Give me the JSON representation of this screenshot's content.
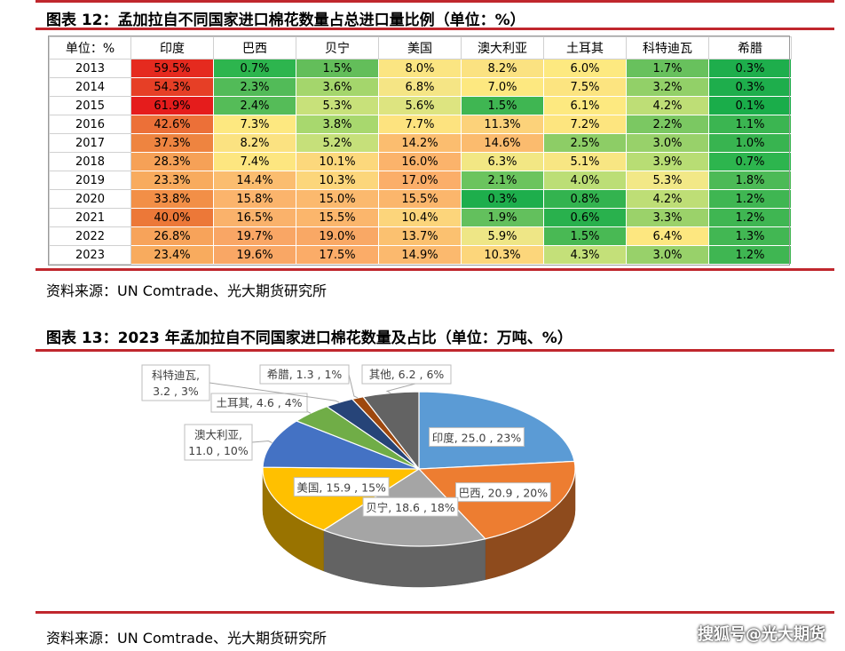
{
  "top_bar_color": "#c0272d",
  "figure12": {
    "title": "图表 12：孟加拉自不同国家进口棉花数量占总进口量比例（单位：%）",
    "header": [
      "单位：%",
      "印度",
      "巴西",
      "贝宁",
      "美国",
      "澳大利亚",
      "土耳其",
      "科特迪瓦",
      "希腊"
    ],
    "rows": [
      {
        "year": "2013",
        "cells": [
          "59.5%",
          "0.7%",
          "1.5%",
          "8.0%",
          "8.2%",
          "6.0%",
          "1.7%",
          "0.3%"
        ],
        "colors": [
          "#e52a1f",
          "#2db54e",
          "#63be5a",
          "#fbe582",
          "#fbe281",
          "#fde980",
          "#68c15d",
          "#1eae4c"
        ]
      },
      {
        "year": "2014",
        "cells": [
          "54.3%",
          "2.3%",
          "3.6%",
          "6.8%",
          "7.0%",
          "7.5%",
          "3.2%",
          "0.3%"
        ],
        "colors": [
          "#e63f26",
          "#52bb58",
          "#a4d66c",
          "#f5e585",
          "#fde880",
          "#fce480",
          "#92d068",
          "#1eae4c"
        ]
      },
      {
        "year": "2015",
        "cells": [
          "61.9%",
          "2.4%",
          "5.3%",
          "5.6%",
          "1.5%",
          "6.1%",
          "4.2%",
          "0.1%"
        ],
        "colors": [
          "#e51c1c",
          "#55bc58",
          "#c8e17a",
          "#dde480",
          "#3fb652",
          "#fde980",
          "#bede76",
          "#1aad4a"
        ]
      },
      {
        "year": "2016",
        "cells": [
          "42.6%",
          "7.3%",
          "3.8%",
          "7.7%",
          "11.3%",
          "7.2%",
          "2.2%",
          "1.1%"
        ],
        "colors": [
          "#ec7038",
          "#fde880",
          "#a8d86e",
          "#fde37f",
          "#fcd27a",
          "#fde57f",
          "#7bc862",
          "#3bb551"
        ]
      },
      {
        "year": "2017",
        "cells": [
          "37.3%",
          "8.2%",
          "5.2%",
          "14.2%",
          "14.6%",
          "2.5%",
          "3.0%",
          "1.0%"
        ],
        "colors": [
          "#ee8440",
          "#fbe281",
          "#c6e07a",
          "#fbbd6f",
          "#fbbb6e",
          "#8dcd66",
          "#98d16a",
          "#38b450"
        ]
      },
      {
        "year": "2018",
        "cells": [
          "28.3%",
          "7.4%",
          "10.1%",
          "16.0%",
          "6.3%",
          "5.1%",
          "3.9%",
          "0.7%"
        ],
        "colors": [
          "#f6a157",
          "#fde680",
          "#fcd87c",
          "#fbb36b",
          "#f2e784",
          "#f8e683",
          "#b8dd74",
          "#2db54e"
        ]
      },
      {
        "year": "2019",
        "cells": [
          "23.3%",
          "14.4%",
          "10.3%",
          "17.0%",
          "2.1%",
          "4.0%",
          "5.3%",
          "1.8%"
        ],
        "colors": [
          "#f8ab5e",
          "#fbbd6f",
          "#fcd67b",
          "#fbae69",
          "#6bc45e",
          "#bcde76",
          "#f2e887",
          "#4cba56"
        ]
      },
      {
        "year": "2020",
        "cells": [
          "33.8%",
          "15.8%",
          "15.0%",
          "15.5%",
          "0.3%",
          "0.8%",
          "4.2%",
          "1.2%"
        ],
        "colors": [
          "#f28f47",
          "#fbb46c",
          "#fbb96e",
          "#fbb66c",
          "#1eae4c",
          "#33b34f",
          "#bede76",
          "#3fb652"
        ]
      },
      {
        "year": "2021",
        "cells": [
          "40.0%",
          "16.5%",
          "15.5%",
          "10.4%",
          "1.9%",
          "0.6%",
          "3.3%",
          "1.2%"
        ],
        "colors": [
          "#ec7838",
          "#fab26b",
          "#fbb66c",
          "#fcd57b",
          "#63c05d",
          "#29b14d",
          "#9bd26a",
          "#3fb652"
        ]
      },
      {
        "year": "2022",
        "cells": [
          "26.8%",
          "19.7%",
          "19.0%",
          "13.7%",
          "5.9%",
          "1.5%",
          "6.4%",
          "1.3%"
        ],
        "colors": [
          "#f7a35a",
          "#f9a665",
          "#f9a865",
          "#fbc170",
          "#eee686",
          "#49b954",
          "#fde780",
          "#42b753"
        ]
      },
      {
        "year": "2023",
        "cells": [
          "23.4%",
          "19.6%",
          "17.5%",
          "14.9%",
          "10.3%",
          "4.3%",
          "3.0%",
          "1.2%"
        ],
        "colors": [
          "#f8ab5e",
          "#f9a765",
          "#fbac68",
          "#fbb96e",
          "#fcd67b",
          "#c4e079",
          "#98d16a",
          "#3fb652"
        ]
      }
    ],
    "source": "资料来源：UN Comtrade、光大期货研究所"
  },
  "figure13": {
    "title": "图表 13：2023 年孟加拉自不同国家进口棉花数量及占比（单位：万吨、%）",
    "source": "资料来源：UN Comtrade、光大期货研究所"
  },
  "watermark": "搜狐号@光大期货",
  "chart_data": {
    "type": "pie",
    "title": "",
    "series": [
      {
        "values": [
          25.0,
          20.9,
          18.6,
          15.9,
          11.0,
          4.6,
          3.2,
          1.3,
          6.2
        ]
      }
    ],
    "categories": [
      "印度",
      "巴西",
      "贝宁",
      "美国",
      "澳大利亚",
      "土耳其",
      "科特迪瓦",
      "希腊",
      "其他"
    ],
    "percents": [
      "23%",
      "20%",
      "18%",
      "15%",
      "10%",
      "4%",
      "3%",
      "1%",
      "6%"
    ],
    "labels": [
      "印度, 25.0 , 23%",
      "巴西, 20.9 , 20%",
      "贝宁, 18.6 , 18%",
      "美国, 15.9 , 15%",
      "澳大利亚, 11.0 , 10%",
      "土耳其, 4.6 , 4%",
      "科特迪瓦, 3.2 , 3%",
      "希腊, 1.3 , 1%",
      "其他, 6.2 , 6%"
    ],
    "colors": [
      "#5b9bd5",
      "#ed7d31",
      "#a5a5a5",
      "#ffc000",
      "#4472c4",
      "#70ad47",
      "#264478",
      "#9e480e",
      "#636363"
    ],
    "style": "3d"
  }
}
